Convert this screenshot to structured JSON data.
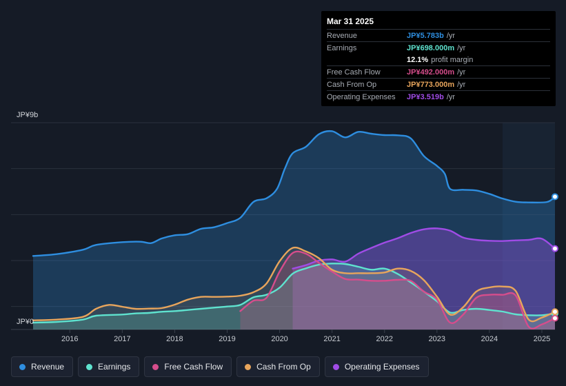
{
  "tooltip": {
    "date": "Mar 31 2025",
    "rows": [
      {
        "label": "Revenue",
        "value": "JP¥5.783b",
        "unit": "/yr",
        "color": "#2e8ee0"
      },
      {
        "label": "Earnings",
        "value": "JP¥698.000m",
        "unit": "/yr",
        "color": "#5fe3cf"
      },
      {
        "label": "",
        "value": "12.1%",
        "unit": "profit margin",
        "color": "#ffffff"
      },
      {
        "label": "Free Cash Flow",
        "value": "JP¥492.000m",
        "unit": "/yr",
        "color": "#d64d8c"
      },
      {
        "label": "Cash From Op",
        "value": "JP¥773.000m",
        "unit": "/yr",
        "color": "#e8a55c"
      },
      {
        "label": "Operating Expenses",
        "value": "JP¥3.519b",
        "unit": "/yr",
        "color": "#a04ce6"
      }
    ]
  },
  "legend": [
    {
      "label": "Revenue",
      "color": "#2e8ee0"
    },
    {
      "label": "Earnings",
      "color": "#5fe3cf"
    },
    {
      "label": "Free Cash Flow",
      "color": "#d64d8c"
    },
    {
      "label": "Cash From Op",
      "color": "#e8a55c"
    },
    {
      "label": "Operating Expenses",
      "color": "#a04ce6"
    }
  ],
  "chart_data": {
    "type": "area",
    "y_top_label": "JP¥9b",
    "y_bottom_label": "JP¥0",
    "ylim": [
      0,
      9
    ],
    "y_unit": "JP¥ billions",
    "xlim": [
      2015.3,
      2025.25
    ],
    "x_ticks": [
      2016,
      2017,
      2018,
      2019,
      2020,
      2021,
      2022,
      2023,
      2024,
      2025
    ],
    "x_tick_labels": [
      "2016",
      "2017",
      "2018",
      "2019",
      "2020",
      "2021",
      "2022",
      "2023",
      "2024",
      "2025"
    ],
    "forecast_shade_start": 2024.25,
    "series": [
      {
        "name": "Revenue",
        "color": "#2e8ee0",
        "fill_opacity": 0.28,
        "points": [
          [
            2015.3,
            3.2
          ],
          [
            2015.75,
            3.28
          ],
          [
            2016.25,
            3.47
          ],
          [
            2016.5,
            3.68
          ],
          [
            2017.0,
            3.8
          ],
          [
            2017.35,
            3.82
          ],
          [
            2017.55,
            3.76
          ],
          [
            2017.75,
            3.96
          ],
          [
            2018.0,
            4.1
          ],
          [
            2018.25,
            4.15
          ],
          [
            2018.5,
            4.38
          ],
          [
            2018.75,
            4.45
          ],
          [
            2019.0,
            4.63
          ],
          [
            2019.25,
            4.86
          ],
          [
            2019.5,
            5.55
          ],
          [
            2019.75,
            5.71
          ],
          [
            2019.95,
            6.12
          ],
          [
            2020.1,
            7.0
          ],
          [
            2020.25,
            7.67
          ],
          [
            2020.5,
            7.95
          ],
          [
            2020.75,
            8.5
          ],
          [
            2021.0,
            8.63
          ],
          [
            2021.25,
            8.36
          ],
          [
            2021.5,
            8.6
          ],
          [
            2021.75,
            8.52
          ],
          [
            2022.0,
            8.46
          ],
          [
            2022.25,
            8.45
          ],
          [
            2022.5,
            8.32
          ],
          [
            2022.75,
            7.55
          ],
          [
            2023.0,
            7.12
          ],
          [
            2023.15,
            6.77
          ],
          [
            2023.25,
            6.12
          ],
          [
            2023.5,
            6.08
          ],
          [
            2023.75,
            6.05
          ],
          [
            2024.0,
            5.9
          ],
          [
            2024.25,
            5.7
          ],
          [
            2024.5,
            5.56
          ],
          [
            2024.75,
            5.53
          ],
          [
            2025.1,
            5.55
          ],
          [
            2025.25,
            5.78
          ]
        ]
      },
      {
        "name": "Operating Expenses",
        "color": "#a04ce6",
        "fill_opacity": 0.35,
        "points": [
          [
            2020.25,
            2.65
          ],
          [
            2020.5,
            2.8
          ],
          [
            2020.75,
            3.0
          ],
          [
            2021.0,
            3.05
          ],
          [
            2021.25,
            2.95
          ],
          [
            2021.5,
            3.3
          ],
          [
            2021.75,
            3.55
          ],
          [
            2022.0,
            3.78
          ],
          [
            2022.25,
            3.97
          ],
          [
            2022.5,
            4.2
          ],
          [
            2022.75,
            4.36
          ],
          [
            2023.0,
            4.4
          ],
          [
            2023.25,
            4.3
          ],
          [
            2023.5,
            4.0
          ],
          [
            2023.75,
            3.9
          ],
          [
            2024.0,
            3.86
          ],
          [
            2024.25,
            3.85
          ],
          [
            2024.5,
            3.88
          ],
          [
            2024.75,
            3.9
          ],
          [
            2025.0,
            3.95
          ],
          [
            2025.25,
            3.52
          ]
        ]
      },
      {
        "name": "Earnings",
        "color": "#5fe3cf",
        "fill_opacity": 0.22,
        "points": [
          [
            2015.3,
            0.3
          ],
          [
            2015.75,
            0.33
          ],
          [
            2016.25,
            0.43
          ],
          [
            2016.5,
            0.6
          ],
          [
            2017.0,
            0.65
          ],
          [
            2017.25,
            0.7
          ],
          [
            2017.5,
            0.72
          ],
          [
            2017.75,
            0.77
          ],
          [
            2018.0,
            0.8
          ],
          [
            2018.25,
            0.85
          ],
          [
            2018.5,
            0.9
          ],
          [
            2018.75,
            0.95
          ],
          [
            2019.0,
            1.0
          ],
          [
            2019.25,
            1.07
          ],
          [
            2019.5,
            1.4
          ],
          [
            2019.75,
            1.51
          ],
          [
            2020.0,
            1.82
          ],
          [
            2020.25,
            2.43
          ],
          [
            2020.5,
            2.66
          ],
          [
            2020.75,
            2.82
          ],
          [
            2021.0,
            2.87
          ],
          [
            2021.25,
            2.85
          ],
          [
            2021.5,
            2.73
          ],
          [
            2021.75,
            2.6
          ],
          [
            2022.0,
            2.65
          ],
          [
            2022.25,
            2.42
          ],
          [
            2022.5,
            2.05
          ],
          [
            2022.75,
            1.65
          ],
          [
            2023.0,
            1.23
          ],
          [
            2023.25,
            0.74
          ],
          [
            2023.5,
            0.85
          ],
          [
            2023.75,
            0.9
          ],
          [
            2024.0,
            0.85
          ],
          [
            2024.25,
            0.78
          ],
          [
            2024.5,
            0.66
          ],
          [
            2024.75,
            0.62
          ],
          [
            2025.0,
            0.62
          ],
          [
            2025.25,
            0.698
          ]
        ]
      },
      {
        "name": "Free Cash Flow",
        "color": "#d64d8c",
        "fill_opacity": 0.25,
        "points": [
          [
            2019.25,
            0.8
          ],
          [
            2019.5,
            1.25
          ],
          [
            2019.75,
            1.38
          ],
          [
            2020.0,
            2.52
          ],
          [
            2020.25,
            3.33
          ],
          [
            2020.5,
            3.3
          ],
          [
            2020.75,
            2.9
          ],
          [
            2021.0,
            2.52
          ],
          [
            2021.25,
            2.2
          ],
          [
            2021.5,
            2.17
          ],
          [
            2021.75,
            2.12
          ],
          [
            2022.0,
            2.12
          ],
          [
            2022.25,
            2.16
          ],
          [
            2022.5,
            2.12
          ],
          [
            2022.75,
            1.65
          ],
          [
            2023.0,
            1.3
          ],
          [
            2023.25,
            0.3
          ],
          [
            2023.5,
            0.65
          ],
          [
            2023.75,
            1.38
          ],
          [
            2024.0,
            1.51
          ],
          [
            2024.25,
            1.51
          ],
          [
            2024.5,
            1.48
          ],
          [
            2024.75,
            0.12
          ],
          [
            2025.0,
            0.22
          ],
          [
            2025.25,
            0.492
          ]
        ]
      },
      {
        "name": "Cash From Op",
        "color": "#e8a55c",
        "fill_opacity": 0.12,
        "points": [
          [
            2015.3,
            0.4
          ],
          [
            2015.75,
            0.43
          ],
          [
            2016.25,
            0.55
          ],
          [
            2016.5,
            0.9
          ],
          [
            2016.75,
            1.07
          ],
          [
            2017.0,
            0.99
          ],
          [
            2017.25,
            0.9
          ],
          [
            2017.5,
            0.91
          ],
          [
            2017.75,
            0.93
          ],
          [
            2018.0,
            1.08
          ],
          [
            2018.25,
            1.3
          ],
          [
            2018.5,
            1.42
          ],
          [
            2018.75,
            1.42
          ],
          [
            2019.0,
            1.43
          ],
          [
            2019.25,
            1.47
          ],
          [
            2019.5,
            1.62
          ],
          [
            2019.75,
            2.0
          ],
          [
            2020.0,
            2.97
          ],
          [
            2020.25,
            3.55
          ],
          [
            2020.5,
            3.4
          ],
          [
            2020.75,
            3.1
          ],
          [
            2021.0,
            2.6
          ],
          [
            2021.25,
            2.45
          ],
          [
            2021.5,
            2.45
          ],
          [
            2021.75,
            2.45
          ],
          [
            2022.0,
            2.48
          ],
          [
            2022.25,
            2.65
          ],
          [
            2022.5,
            2.55
          ],
          [
            2022.75,
            2.15
          ],
          [
            2023.0,
            1.43
          ],
          [
            2023.25,
            0.65
          ],
          [
            2023.5,
            0.97
          ],
          [
            2023.75,
            1.65
          ],
          [
            2024.0,
            1.83
          ],
          [
            2024.25,
            1.87
          ],
          [
            2024.5,
            1.68
          ],
          [
            2024.75,
            0.43
          ],
          [
            2025.0,
            0.52
          ],
          [
            2025.25,
            0.773
          ]
        ]
      }
    ]
  }
}
